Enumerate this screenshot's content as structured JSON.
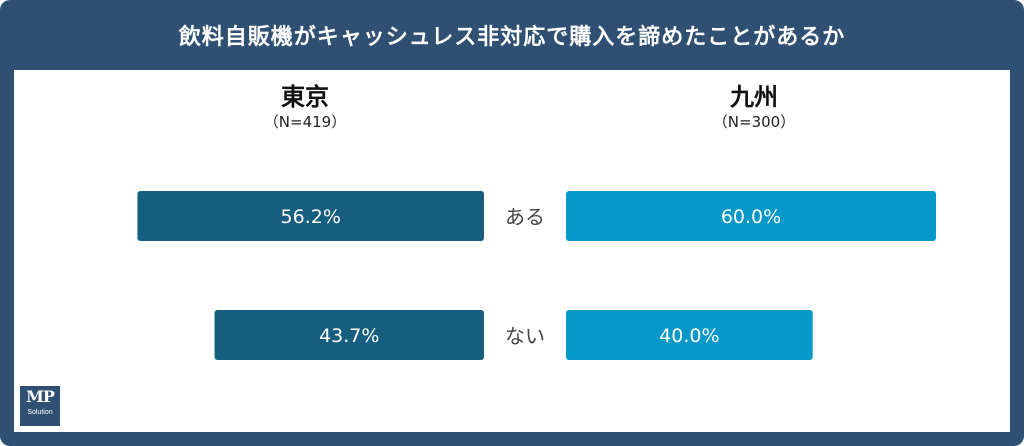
{
  "title": "飲料自販機がキャッシュレス非対応で購入を諦めたことがあるか",
  "columns": [
    {
      "name": "東京",
      "n_label": "（N=419）"
    },
    {
      "name": "九州",
      "n_label": "（N=300）"
    }
  ],
  "logo": {
    "main": "MP",
    "sub": "Solution"
  },
  "colors": {
    "tokyo": "#165e80",
    "kyushu": "#0598c8",
    "frame": "#2f5072"
  },
  "chart_data": {
    "type": "bar",
    "categories": [
      "ある",
      "ない"
    ],
    "series": [
      {
        "name": "東京",
        "values": [
          56.2,
          43.7
        ],
        "labels": [
          "56.2%",
          "43.7%"
        ]
      },
      {
        "name": "九州",
        "values": [
          60.0,
          40.0
        ],
        "labels": [
          "60.0%",
          "40.0%"
        ]
      }
    ],
    "xlim": [
      0,
      60
    ]
  }
}
